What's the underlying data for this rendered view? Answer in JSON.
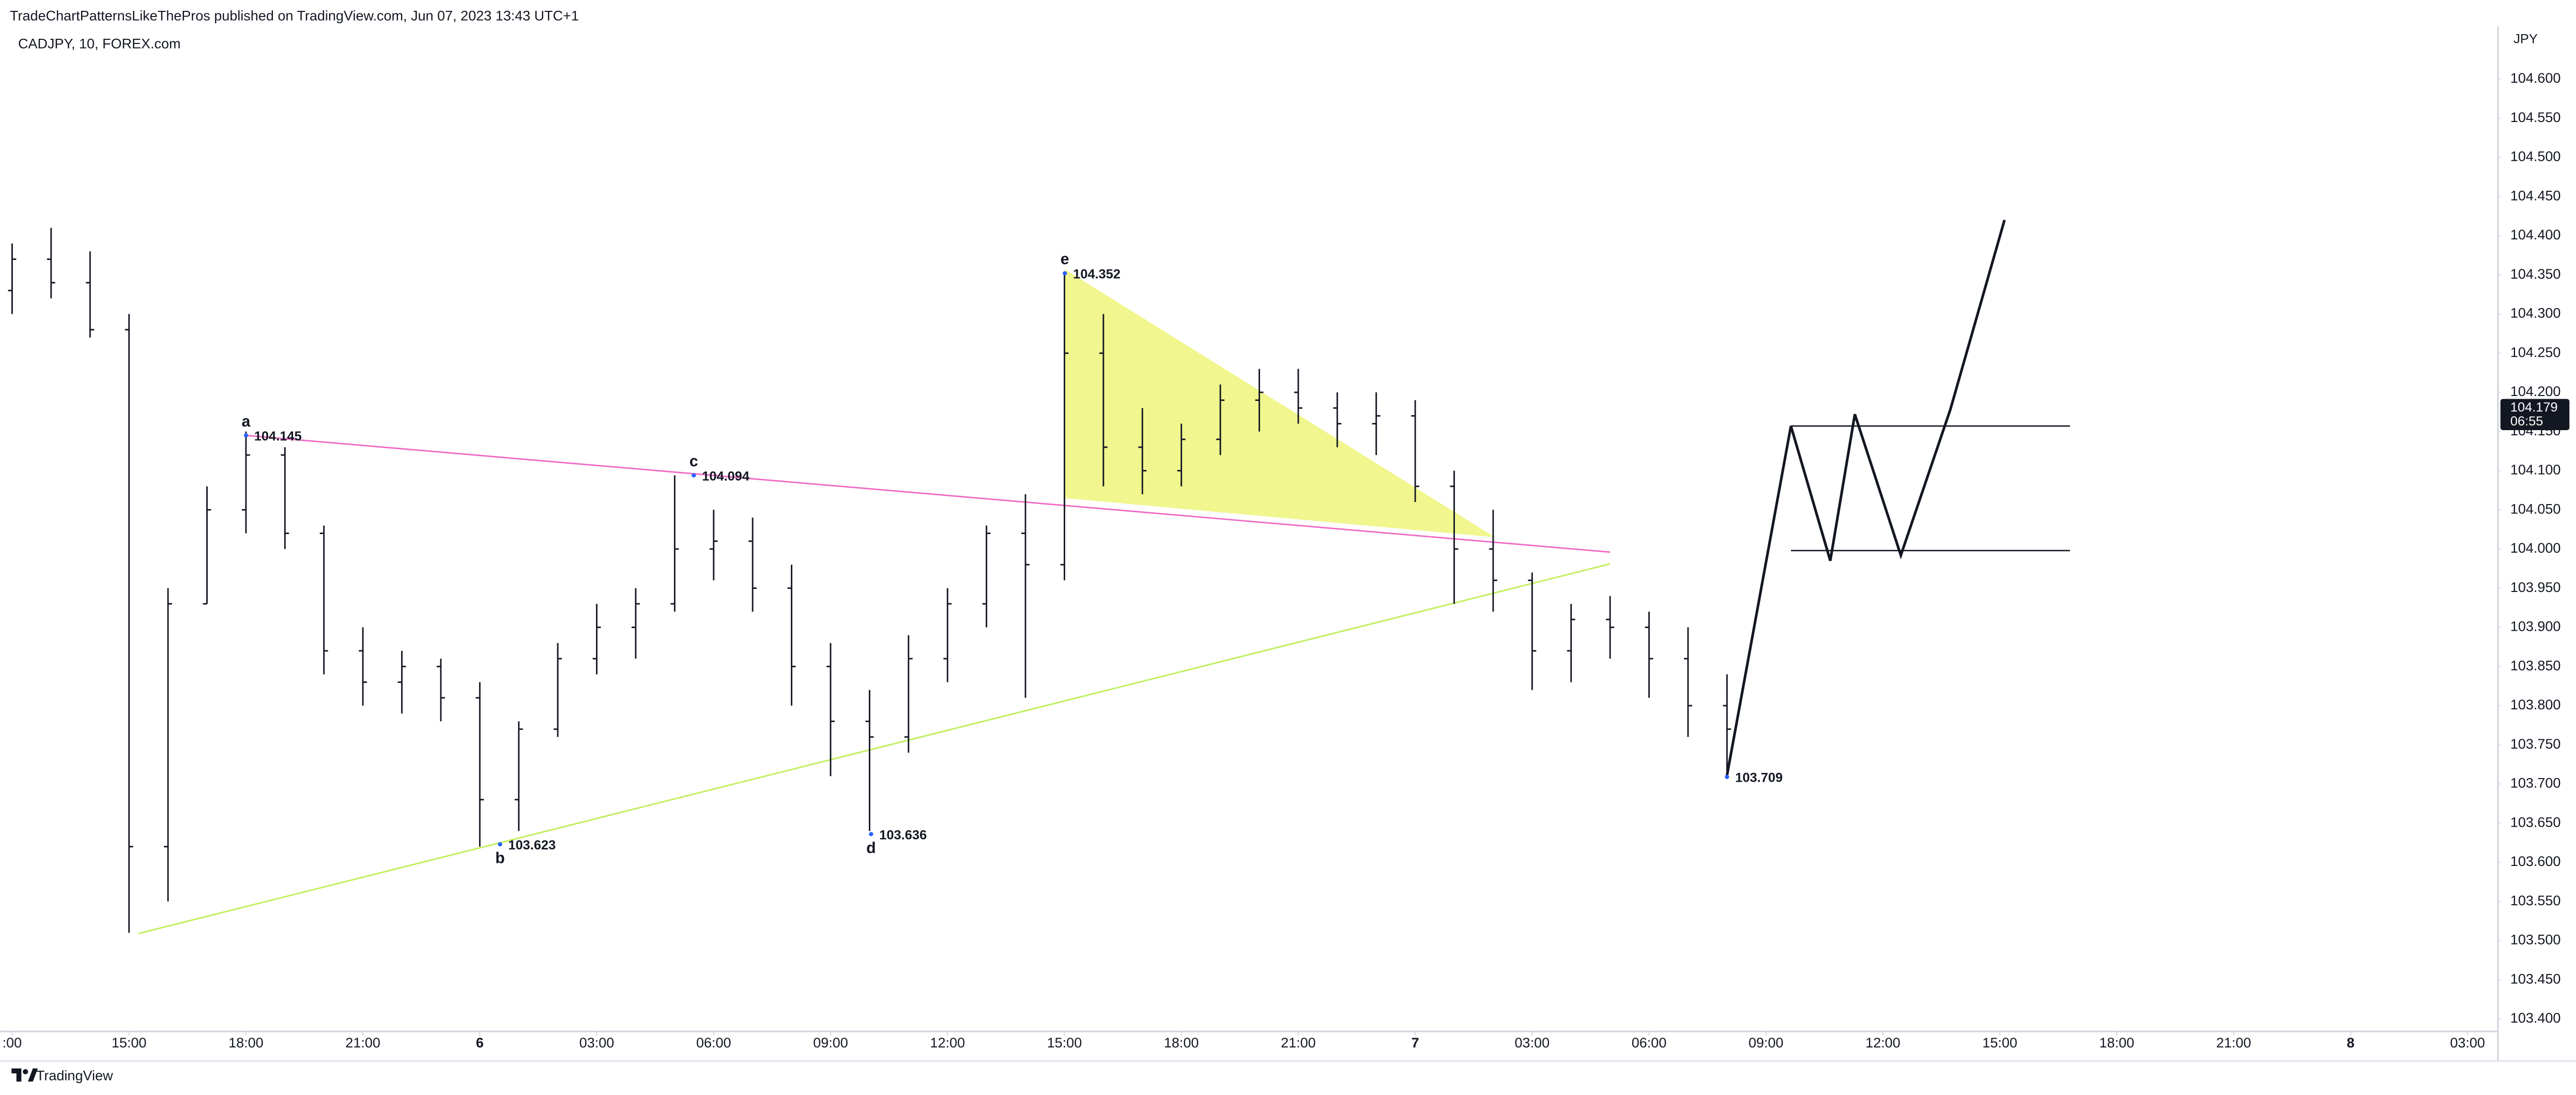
{
  "header": "TradeChartPatternsLikeThePros published on TradingView.com, Jun 07, 2023 13:43 UTC+1",
  "footer": "TradingView",
  "chart_data": {
    "type": "ohlc",
    "title": "CADJPY, 10, FOREX.com",
    "currency": "JPY",
    "color": "#131722",
    "x": [
      12,
      13,
      14,
      15,
      16,
      17,
      18,
      19,
      20,
      21,
      22,
      23,
      24,
      25,
      26,
      27,
      28,
      29,
      30,
      31,
      32,
      33,
      34,
      35,
      36,
      37,
      38,
      39,
      40,
      41,
      42,
      43,
      44,
      45,
      46,
      47,
      48,
      49,
      50,
      51,
      52,
      53,
      54,
      55,
      56
    ],
    "open": [
      104.33,
      104.37,
      104.34,
      104.28,
      103.62,
      103.93,
      104.05,
      104.12,
      104.02,
      103.87,
      103.83,
      103.85,
      103.81,
      103.68,
      103.77,
      103.86,
      103.9,
      103.93,
      104.0,
      104.01,
      103.95,
      103.85,
      103.78,
      103.76,
      103.86,
      103.93,
      104.02,
      103.98,
      104.25,
      104.13,
      104.1,
      104.14,
      104.19,
      104.2,
      104.18,
      104.16,
      104.17,
      104.08,
      104.0,
      103.96,
      103.87,
      103.91,
      103.9,
      103.86,
      103.8
    ],
    "high": [
      104.39,
      104.41,
      104.38,
      104.3,
      103.95,
      104.08,
      104.15,
      104.13,
      104.03,
      103.9,
      103.87,
      103.86,
      103.83,
      103.78,
      103.88,
      103.93,
      103.95,
      104.094,
      104.05,
      104.04,
      103.98,
      103.88,
      103.82,
      103.89,
      103.95,
      104.03,
      104.07,
      104.352,
      104.3,
      104.18,
      104.16,
      104.21,
      104.23,
      104.23,
      104.2,
      104.2,
      104.19,
      104.1,
      104.05,
      103.97,
      103.93,
      103.94,
      103.92,
      103.9,
      103.84
    ],
    "low": [
      104.3,
      104.32,
      104.27,
      103.51,
      103.55,
      103.93,
      104.02,
      104.0,
      103.84,
      103.8,
      103.79,
      103.78,
      103.62,
      103.64,
      103.76,
      103.84,
      103.86,
      103.92,
      103.96,
      103.92,
      103.8,
      103.71,
      103.64,
      103.74,
      103.83,
      103.9,
      103.81,
      103.96,
      104.08,
      104.07,
      104.08,
      104.12,
      104.15,
      104.16,
      104.13,
      104.12,
      104.06,
      103.93,
      103.92,
      103.82,
      103.83,
      103.86,
      103.81,
      103.76,
      103.71
    ],
    "close": [
      104.37,
      104.34,
      104.28,
      103.62,
      103.93,
      104.05,
      104.12,
      104.02,
      103.87,
      103.83,
      103.85,
      103.81,
      103.68,
      103.77,
      103.86,
      103.9,
      103.93,
      104.0,
      104.01,
      103.95,
      103.85,
      103.78,
      103.76,
      103.86,
      103.93,
      104.02,
      103.98,
      104.25,
      104.13,
      104.1,
      104.14,
      104.19,
      104.2,
      104.18,
      104.16,
      104.17,
      104.08,
      104.0,
      103.96,
      103.87,
      103.91,
      103.9,
      103.86,
      103.8,
      103.77
    ],
    "xlim": [
      11.9,
      75.76
    ],
    "xticks": [
      {
        "value": 12,
        "label": ":00"
      },
      {
        "value": 15,
        "label": "15:00"
      },
      {
        "value": 18,
        "label": "18:00"
      },
      {
        "value": 21,
        "label": "21:00"
      },
      {
        "value": 24,
        "label": "6"
      },
      {
        "value": 27,
        "label": "03:00"
      },
      {
        "value": 30,
        "label": "06:00"
      },
      {
        "value": 33,
        "label": "09:00"
      },
      {
        "value": 36,
        "label": "12:00"
      },
      {
        "value": 39,
        "label": "15:00"
      },
      {
        "value": 42,
        "label": "18:00"
      },
      {
        "value": 45,
        "label": "21:00"
      },
      {
        "value": 48,
        "label": "7"
      },
      {
        "value": 51,
        "label": "03:00"
      },
      {
        "value": 54,
        "label": "06:00"
      },
      {
        "value": 57,
        "label": "09:00"
      },
      {
        "value": 60,
        "label": "12:00"
      },
      {
        "value": 63,
        "label": "15:00"
      },
      {
        "value": 66,
        "label": "18:00"
      },
      {
        "value": 69,
        "label": "21:00"
      },
      {
        "value": 72,
        "label": "8"
      },
      {
        "value": 75,
        "label": "03:00"
      }
    ],
    "ylim": [
      103.383,
      104.667
    ],
    "yticks": [
      {
        "value": 103.4,
        "label": "103.400"
      },
      {
        "value": 103.45,
        "label": "103.450"
      },
      {
        "value": 103.5,
        "label": "103.500"
      },
      {
        "value": 103.55,
        "label": "103.550"
      },
      {
        "value": 103.6,
        "label": "103.600"
      },
      {
        "value": 103.65,
        "label": "103.650"
      },
      {
        "value": 103.7,
        "label": "103.700"
      },
      {
        "value": 103.75,
        "label": "103.750"
      },
      {
        "value": 103.8,
        "label": "103.800"
      },
      {
        "value": 103.85,
        "label": "103.850"
      },
      {
        "value": 103.9,
        "label": "103.900"
      },
      {
        "value": 103.95,
        "label": "103.950"
      },
      {
        "value": 104.0,
        "label": "104.000"
      },
      {
        "value": 104.05,
        "label": "104.050"
      },
      {
        "value": 104.1,
        "label": "104.100"
      },
      {
        "value": 104.15,
        "label": "104.150"
      },
      {
        "value": 104.2,
        "label": "104.200"
      },
      {
        "value": 104.25,
        "label": "104.250"
      },
      {
        "value": 104.3,
        "label": "104.300"
      },
      {
        "value": 104.35,
        "label": "104.350"
      },
      {
        "value": 104.4,
        "label": "104.400"
      },
      {
        "value": 104.45,
        "label": "104.450"
      },
      {
        "value": 104.5,
        "label": "104.500"
      },
      {
        "value": 104.55,
        "label": "104.550"
      },
      {
        "value": 104.6,
        "label": "104.600"
      }
    ],
    "grid": false,
    "last_price": {
      "value": 104.179,
      "countdown": "06:55",
      "color": "#131722"
    },
    "annotations": [
      {
        "label": "a",
        "x": 18.0,
        "price": 104.145,
        "position": "above"
      },
      {
        "label": "b",
        "x": 24.52,
        "price": 103.623,
        "position": "below"
      },
      {
        "label": "c",
        "x": 29.49,
        "price": 104.094,
        "position": "above"
      },
      {
        "label": "d",
        "x": 34.04,
        "price": 103.636,
        "position": "below"
      },
      {
        "label": "e",
        "x": 39.01,
        "price": 104.352,
        "position": "above"
      },
      {
        "x": 56.0,
        "price": 103.709,
        "position": "below"
      }
    ],
    "trendlines": [
      {
        "color": "#f06bc4",
        "x": [
          18.0,
          53.0
        ],
        "y": [
          104.145,
          103.996
        ]
      },
      {
        "color": "#bdf05a",
        "x": [
          15.24,
          53.0
        ],
        "y": [
          103.509,
          103.981
        ]
      }
    ],
    "triangle": {
      "color": "#eff57a",
      "x": [
        39.01,
        39.01,
        50.05
      ],
      "y": [
        104.357,
        104.065,
        104.015
      ]
    },
    "projection": {
      "color": "#131722",
      "x": [
        56.0,
        57.64,
        58.65,
        59.28,
        60.46,
        61.73,
        63.12
      ],
      "y": [
        103.711,
        104.157,
        103.985,
        104.172,
        103.992,
        104.178,
        104.42
      ]
    },
    "range_lines": [
      {
        "x": [
          57.64,
          64.8
        ],
        "y": 104.157
      },
      {
        "x": [
          57.64,
          64.8
        ],
        "y": 103.998
      }
    ]
  }
}
